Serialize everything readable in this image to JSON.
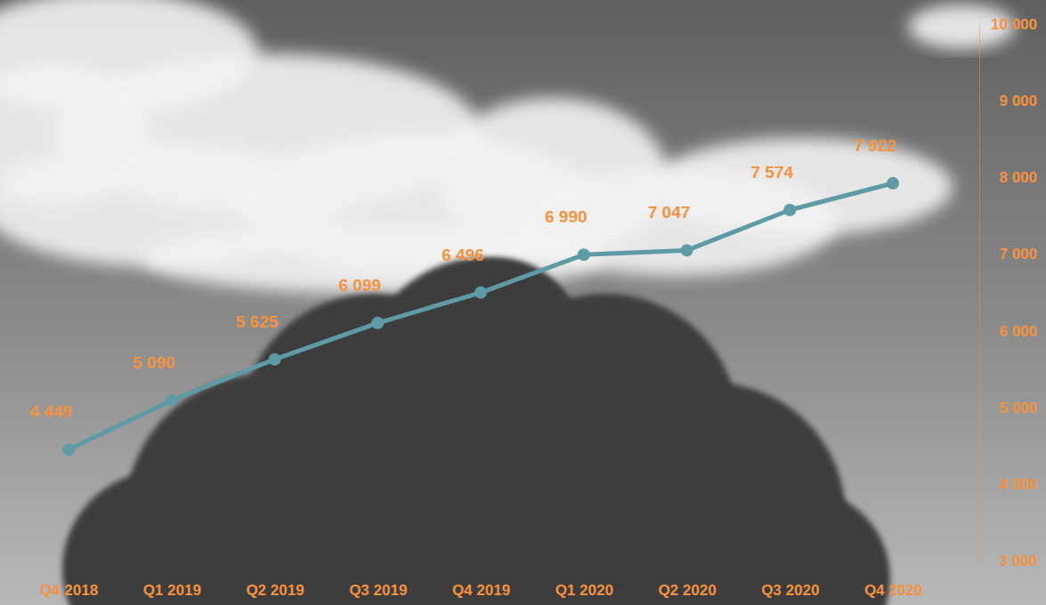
{
  "chart_data": {
    "type": "line",
    "categories": [
      "Q4 2018",
      "Q1 2019",
      "Q2 2019",
      "Q3 2019",
      "Q4 2019",
      "Q1 2020",
      "Q2 2020",
      "Q3 2020",
      "Q4 2020"
    ],
    "values": [
      4449,
      5090,
      5625,
      6099,
      6496,
      6990,
      7047,
      7574,
      7922
    ],
    "value_labels": [
      "4 449",
      "5 090",
      "5 625",
      "6 099",
      "6 496",
      "6 990",
      "7 047",
      "7 574",
      "7 922"
    ],
    "color": "#5e9ba4",
    "marker": "circle",
    "data_labels": true,
    "grid": false,
    "ylim": [
      3000,
      10000
    ],
    "yticks": [
      {
        "value": 3000,
        "label": "3 000"
      },
      {
        "value": 4000,
        "label": "4 000"
      },
      {
        "value": 5000,
        "label": "5 000"
      },
      {
        "value": 6000,
        "label": "6 000"
      },
      {
        "value": 7000,
        "label": "7 000"
      },
      {
        "value": 8000,
        "label": "8 000"
      },
      {
        "value": 9000,
        "label": "9 000"
      },
      {
        "value": 10000,
        "label": "10 000"
      }
    ]
  }
}
